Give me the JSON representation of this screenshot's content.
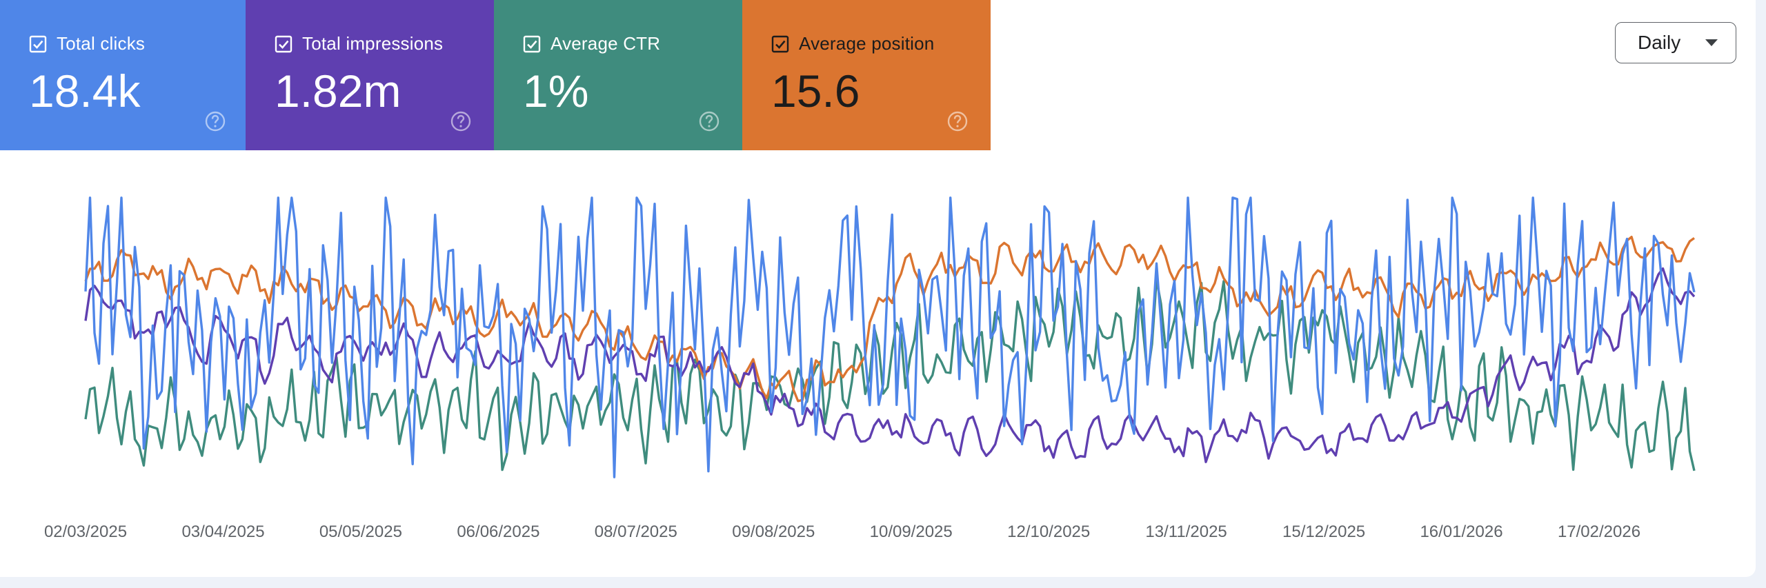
{
  "metrics": [
    {
      "id": "clicks",
      "label": "Total clicks",
      "value": "18.4k",
      "color": "#4f86e8",
      "checked": true,
      "icon": "help-icon"
    },
    {
      "id": "impressions",
      "label": "Total impressions",
      "value": "1.82m",
      "color": "#5f3fb0",
      "checked": true,
      "icon": "help-icon"
    },
    {
      "id": "ctr",
      "label": "Average CTR",
      "value": "1%",
      "color": "#3f8c7e",
      "checked": true,
      "icon": "help-icon"
    },
    {
      "id": "position",
      "label": "Average position",
      "value": "15.6",
      "color": "#db7530",
      "checked": true,
      "icon": "help-icon"
    }
  ],
  "granularity": {
    "selected": "Daily",
    "icon": "caret-down-icon"
  },
  "chart_data": {
    "type": "line",
    "x_start": "2025-03-02",
    "x_end": "2026-02-24",
    "x_ticks": [
      "02/03/2025",
      "03/04/2025",
      "05/05/2025",
      "06/06/2025",
      "08/07/2025",
      "09/08/2025",
      "10/09/2025",
      "12/10/2025",
      "13/11/2025",
      "15/12/2025",
      "16/01/2026",
      "17/02/2026"
    ],
    "y_axis_labels_shown": false,
    "grid": false,
    "legend": "metric cards above chart",
    "series": [
      {
        "name": "Total clicks",
        "color": "#4f86e8",
        "normalized_level": [
          0.62,
          0.78,
          0.74,
          0.3,
          0.52,
          0.7,
          0.35,
          0.66,
          0.28,
          0.48,
          0.9,
          0.42,
          0.72,
          0.55,
          0.32,
          0.94,
          0.36,
          0.58,
          0.8,
          0.4,
          0.65,
          0.3,
          0.5,
          0.88,
          0.46,
          0.74,
          0.34,
          0.56,
          0.92,
          0.38,
          0.7,
          0.3,
          0.52,
          0.82,
          0.44,
          0.68,
          0.36,
          0.58,
          0.9,
          0.4,
          0.72,
          0.32,
          0.6,
          0.84,
          0.46,
          0.7,
          0.34,
          0.64,
          0.86,
          0.38,
          0.72,
          0.3,
          0.5,
          0.62,
          0.42,
          0.74,
          0.36,
          0.66,
          0.92,
          0.46,
          0.8,
          0.42,
          0.68,
          0.58,
          0.7,
          0.44,
          0.78,
          0.54,
          0.86,
          0.5,
          0.72,
          0.62,
          0.8,
          0.56,
          0.7,
          0.6,
          0.76,
          0.52,
          0.82,
          0.6,
          0.64
        ]
      },
      {
        "name": "Total impressions",
        "color": "#5f3fb0",
        "normalized_level": [
          0.6,
          0.66,
          0.58,
          0.52,
          0.62,
          0.46,
          0.55,
          0.5,
          0.44,
          0.54,
          0.48,
          0.42,
          0.5,
          0.46,
          0.52,
          0.44,
          0.48,
          0.5,
          0.46,
          0.42,
          0.52,
          0.48,
          0.44,
          0.5,
          0.46,
          0.42,
          0.48,
          0.4,
          0.46,
          0.42,
          0.36,
          0.3,
          0.28,
          0.24,
          0.26,
          0.22,
          0.24,
          0.2,
          0.22,
          0.2,
          0.18,
          0.2,
          0.22,
          0.18,
          0.16,
          0.2,
          0.18,
          0.22,
          0.2,
          0.16,
          0.18,
          0.2,
          0.22,
          0.18,
          0.2,
          0.16,
          0.18,
          0.2,
          0.22,
          0.2,
          0.24,
          0.28,
          0.32,
          0.38,
          0.42,
          0.4,
          0.48,
          0.44,
          0.52,
          0.58,
          0.68,
          0.72,
          0.62
        ]
      },
      {
        "name": "Average CTR",
        "color": "#3f8c7e",
        "normalized_level": [
          0.22,
          0.28,
          0.2,
          0.16,
          0.24,
          0.18,
          0.2,
          0.26,
          0.22,
          0.3,
          0.24,
          0.36,
          0.28,
          0.32,
          0.26,
          0.3,
          0.24,
          0.34,
          0.28,
          0.22,
          0.32,
          0.26,
          0.3,
          0.34,
          0.28,
          0.24,
          0.3,
          0.36,
          0.32,
          0.28,
          0.34,
          0.3,
          0.38,
          0.36,
          0.42,
          0.46,
          0.4,
          0.5,
          0.44,
          0.52,
          0.46,
          0.56,
          0.5,
          0.54,
          0.6,
          0.48,
          0.56,
          0.52,
          0.58,
          0.5,
          0.54,
          0.6,
          0.46,
          0.56,
          0.5,
          0.58,
          0.54,
          0.48,
          0.5,
          0.44,
          0.4,
          0.34,
          0.3,
          0.36,
          0.28,
          0.24,
          0.3,
          0.22,
          0.26,
          0.2,
          0.24,
          0.18,
          0.22
        ]
      },
      {
        "name": "Average position",
        "color": "#db7530",
        "normalized_level": [
          0.72,
          0.76,
          0.74,
          0.7,
          0.73,
          0.71,
          0.72,
          0.68,
          0.7,
          0.66,
          0.64,
          0.62,
          0.6,
          0.58,
          0.62,
          0.56,
          0.6,
          0.58,
          0.54,
          0.56,
          0.52,
          0.5,
          0.48,
          0.44,
          0.42,
          0.4,
          0.38,
          0.36,
          0.4,
          0.38,
          0.6,
          0.74,
          0.72,
          0.76,
          0.74,
          0.78,
          0.76,
          0.77,
          0.79,
          0.78,
          0.8,
          0.78,
          0.74,
          0.7,
          0.64,
          0.62,
          0.66,
          0.7,
          0.68,
          0.66,
          0.64,
          0.66,
          0.7,
          0.68,
          0.72,
          0.7,
          0.74,
          0.76,
          0.78,
          0.82,
          0.8,
          0.84
        ]
      }
    ]
  }
}
